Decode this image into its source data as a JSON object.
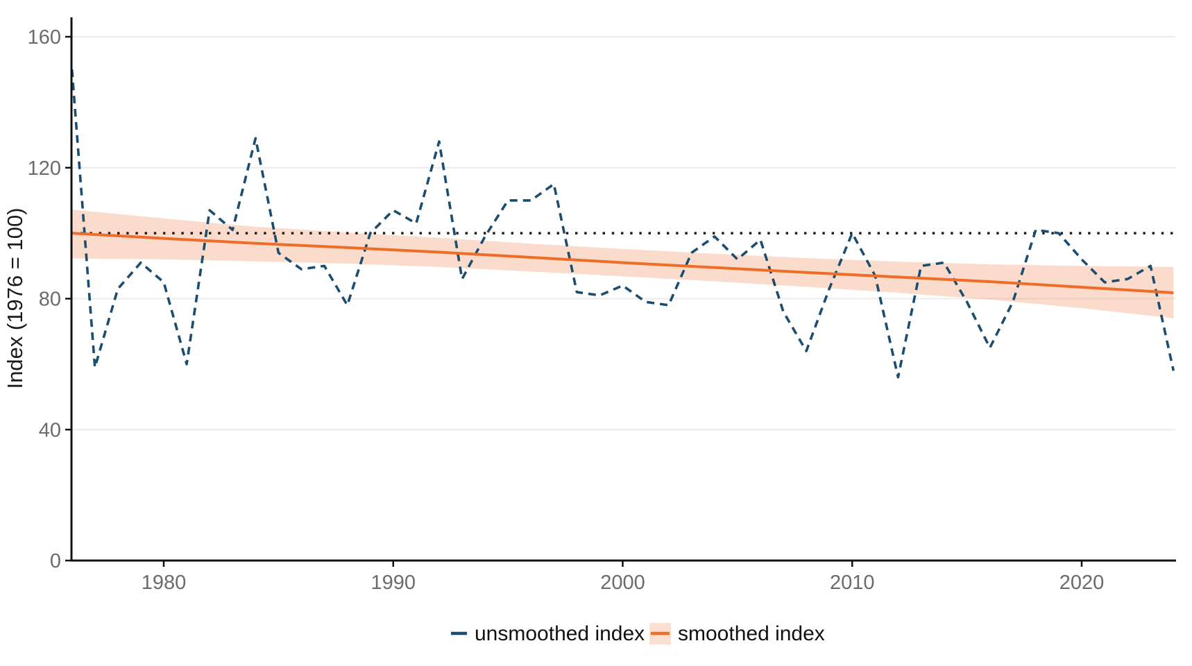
{
  "figure": {
    "background_color": "#ffffff",
    "title": "",
    "description_of_content": "Time-series line chart of an index (1976 = 100) from 1976 to 2024 with a dashed unsmoothed series, a solid smoothed trend line with confidence band, and a dotted reference line at 100"
  },
  "colors": {
    "unsmoothed_line": "#1b4d70",
    "smoothed_line": "#ee6d28",
    "confidence_band": "#fbe0d2",
    "reference_line": "#1a1a1a",
    "gridline": "#ececec",
    "axis_line": "#111111",
    "tick_label": "#6b6b6b",
    "axis_title": "#1a1a1a"
  },
  "chart_data": {
    "type": "line",
    "title": "",
    "xlabel": "",
    "ylabel": "Index (1976 = 100)",
    "xlim": [
      1976,
      2024.2
    ],
    "ylim": [
      0,
      166
    ],
    "xticks": [
      1980,
      1990,
      2000,
      2010,
      2020
    ],
    "yticks": [
      0,
      40,
      80,
      120,
      160
    ],
    "grid": "horizontal-only",
    "legend_position": "bottom-center",
    "reference_line": {
      "y": 100,
      "style": "dotted",
      "color": "#1a1a1a"
    },
    "series": [
      {
        "name": "unsmoothed index",
        "style": "dashed",
        "color": "#1b4d70",
        "x": [
          1976,
          1977,
          1978,
          1979,
          1980,
          1981,
          1982,
          1983,
          1984,
          1985,
          1986,
          1987,
          1988,
          1989,
          1990,
          1991,
          1992,
          1993,
          1994,
          1995,
          1996,
          1997,
          1998,
          1999,
          2000,
          2001,
          2002,
          2003,
          2004,
          2005,
          2006,
          2007,
          2008,
          2009,
          2010,
          2011,
          2012,
          2013,
          2014,
          2015,
          2016,
          2017,
          2018,
          2019,
          2020,
          2021,
          2022,
          2023,
          2024
        ],
        "values": [
          150,
          59,
          83,
          91,
          85,
          60,
          107,
          101,
          129,
          94,
          89,
          90,
          78,
          100,
          107,
          103,
          128,
          86,
          99,
          110,
          110,
          115,
          82,
          81,
          84,
          79,
          78,
          94,
          99,
          92,
          98,
          76,
          64,
          83,
          100,
          87,
          56,
          90,
          91,
          79,
          65,
          79,
          101,
          100,
          92,
          85,
          86,
          90,
          58
        ]
      },
      {
        "name": "smoothed index",
        "style": "solid-with-band",
        "color": "#ee6d28",
        "band_color": "#fbe0d2",
        "x": [
          1976,
          1980,
          1984,
          1988,
          1992,
          1996,
          2000,
          2004,
          2008,
          2012,
          2016,
          2020,
          2024
        ],
        "values": [
          100.0,
          98.4,
          96.9,
          95.6,
          94.2,
          92.6,
          91.0,
          89.5,
          88.0,
          86.6,
          85.2,
          83.5,
          81.8
        ],
        "band_upper": [
          107.2,
          104.5,
          102.0,
          100.2,
          98.6,
          96.8,
          95.2,
          93.7,
          92.4,
          91.3,
          90.5,
          90.0,
          89.7
        ],
        "band_lower": [
          92.3,
          92.0,
          91.4,
          90.7,
          89.7,
          88.3,
          86.8,
          85.3,
          83.6,
          81.8,
          79.7,
          77.1,
          74.0
        ]
      }
    ]
  }
}
